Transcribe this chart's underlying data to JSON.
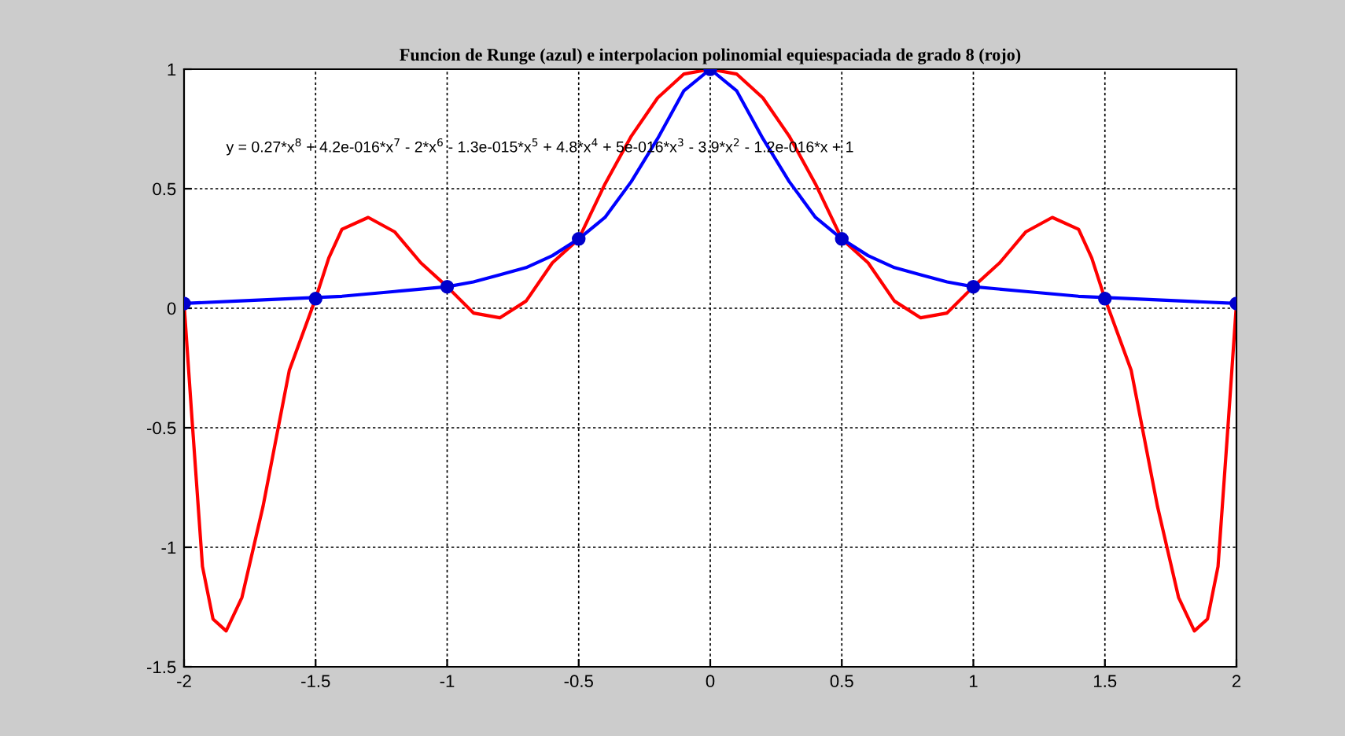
{
  "chart_data": {
    "type": "line",
    "title": "Funcion de Runge (azul) e interpolacion polinomial equiespaciada de grado 8 (rojo)",
    "annotations": [
      "y = 0.27*x$^{8}$ + 4.2e-016*x$^{7}$ - 2*x$^{6}$ - 1.3e-015*x$^{5}$ + 4.8*x$^{4}$ + 5e-016*x$^{3}$ - 3.9*x$^{2}$ - 1.2e-016*x + 1"
    ],
    "xlim": [
      -2,
      2
    ],
    "ylim": [
      -1.5,
      1
    ],
    "xticks": [
      -2,
      -1.5,
      -1,
      -0.5,
      0,
      0.5,
      1,
      1.5,
      2
    ],
    "yticks": [
      -1.5,
      -1,
      -0.5,
      0,
      0.5,
      1
    ],
    "grid": true,
    "line_style": "solid",
    "series": [
      {
        "color": "#ff0000",
        "marker": "none",
        "x": [
          -2,
          -1.97,
          -1.93,
          -1.89,
          -1.84,
          -1.78,
          -1.7,
          -1.6,
          -1.5,
          -1.45,
          -1.4,
          -1.3,
          -1.2,
          -1.1,
          -1,
          -0.9,
          -0.8,
          -0.7,
          -0.6,
          -0.5,
          -0.4,
          -0.3,
          -0.2,
          -0.1,
          0,
          0.1,
          0.2,
          0.3,
          0.4,
          0.5,
          0.6,
          0.7,
          0.8,
          0.9,
          1,
          1.1,
          1.2,
          1.3,
          1.4,
          1.45,
          1.5,
          1.6,
          1.7,
          1.78,
          1.84,
          1.89,
          1.93,
          1.97,
          2
        ],
        "values": [
          0.02,
          -0.46,
          -1.08,
          -1.3,
          -1.35,
          -1.21,
          -0.83,
          -0.26,
          0.04,
          0.21,
          0.33,
          0.38,
          0.32,
          0.19,
          0.09,
          -0.02,
          -0.04,
          0.03,
          0.19,
          0.29,
          0.52,
          0.72,
          0.88,
          0.98,
          1,
          0.98,
          0.88,
          0.72,
          0.52,
          0.29,
          0.19,
          0.03,
          -0.04,
          -0.02,
          0.09,
          0.19,
          0.32,
          0.38,
          0.33,
          0.21,
          0.04,
          -0.26,
          -0.83,
          -1.21,
          -1.35,
          -1.3,
          -1.08,
          -0.46,
          0.02
        ]
      },
      {
        "color": "#0000ff",
        "marker": "none",
        "x": [
          -2,
          -1.8,
          -1.6,
          -1.4,
          -1.2,
          -1,
          -0.9,
          -0.8,
          -0.7,
          -0.6,
          -0.5,
          -0.4,
          -0.3,
          -0.2,
          -0.1,
          0,
          0.1,
          0.2,
          0.3,
          0.4,
          0.5,
          0.6,
          0.7,
          0.8,
          0.9,
          1,
          1.2,
          1.4,
          1.6,
          1.8,
          2
        ],
        "values": [
          0.02,
          0.03,
          0.04,
          0.05,
          0.07,
          0.09,
          0.11,
          0.14,
          0.17,
          0.22,
          0.29,
          0.38,
          0.53,
          0.71,
          0.91,
          1,
          0.91,
          0.71,
          0.53,
          0.38,
          0.29,
          0.22,
          0.17,
          0.14,
          0.11,
          0.09,
          0.07,
          0.05,
          0.04,
          0.03,
          0.02
        ]
      },
      {
        "type": "scatter",
        "color": "#0000cc",
        "marker": "circle",
        "x": [
          -2,
          -1.5,
          -1,
          -0.5,
          0,
          0.5,
          1,
          1.5,
          2
        ],
        "values": [
          0.02,
          0.04,
          0.09,
          0.29,
          1,
          0.29,
          0.09,
          0.04,
          0.02
        ]
      }
    ]
  }
}
